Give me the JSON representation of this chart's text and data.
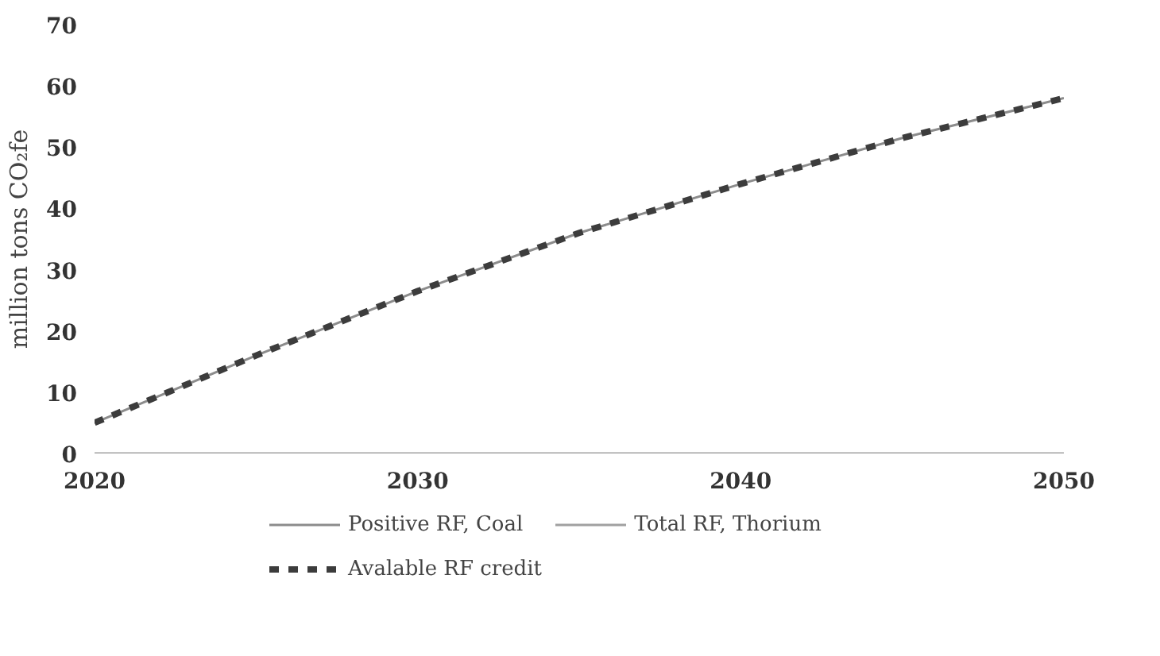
{
  "chart_data": {
    "type": "line",
    "ylabel": "million tons CO₂fe",
    "x": [
      2020,
      2025,
      2030,
      2035,
      2040,
      2045,
      2050
    ],
    "xlim": [
      2020,
      2050
    ],
    "xticks": [
      2020,
      2030,
      2040,
      2050
    ],
    "ylim": [
      0,
      70
    ],
    "yticks": [
      0,
      10,
      20,
      30,
      40,
      50,
      60,
      70
    ],
    "grid": false,
    "legend": "bottom",
    "marker": "none",
    "series": [
      {
        "name": "Positive RF, Coal",
        "color": "#8c8c8c",
        "values": [
          5,
          16,
          26.5,
          36,
          44,
          51.5,
          58
        ],
        "line_style": "solid"
      },
      {
        "name": "Total RF, Thorium",
        "color": "#a0a0a0",
        "values": [
          0,
          0,
          0,
          0,
          0,
          0,
          0
        ],
        "line_style": "solid"
      },
      {
        "name": "Avalable RF credit",
        "color": "#3c3c3c",
        "values": [
          5,
          16,
          26.5,
          36,
          44,
          51.5,
          58
        ],
        "line_style": "dashed"
      }
    ]
  }
}
